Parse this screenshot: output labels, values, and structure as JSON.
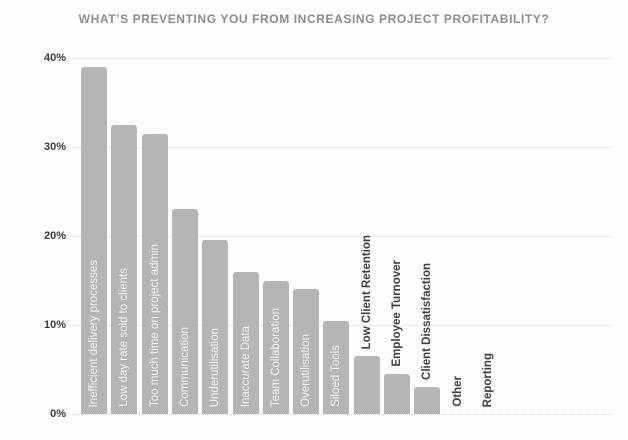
{
  "chart_data": {
    "type": "bar",
    "title": "WHAT’S PREVENTING YOU FROM INCREASING PROJECT PROFITABILITY?",
    "categories": [
      "Inefficient delivery processes",
      "Low day rate sold to clients",
      "Too much time on project admin",
      "Communication",
      "Underutilisation",
      "Inaccurate Data",
      "Team Collaboration",
      "Overutilisation",
      "Siloed Tools",
      "Low Client Retention",
      "Employee Turnover",
      "Client Dissatisfaction",
      "Other",
      "Reporting"
    ],
    "values": [
      39,
      32.5,
      31.5,
      23,
      19.5,
      16,
      15,
      14,
      10.5,
      6.5,
      4.5,
      3,
      0,
      0
    ],
    "label_placement": [
      "inside",
      "inside",
      "inside",
      "inside",
      "inside",
      "inside",
      "inside",
      "inside",
      "inside",
      "above",
      "above",
      "above",
      "above",
      "above"
    ],
    "xlabel": "",
    "ylabel": "",
    "ylim": [
      0,
      40
    ],
    "ytick_values": [
      0,
      10,
      20,
      30,
      40
    ],
    "ytick_labels": [
      "0%",
      "10%",
      "20%",
      "30%",
      "40%"
    ],
    "grid": true,
    "legend": false,
    "colors": {
      "bar": "#b5b5b5",
      "inside_label": "#f4f4f4",
      "outside_label": "#3f3f3f",
      "title": "#8c8c8c",
      "tick": "#3b3b3b",
      "gridline": "#ededed",
      "baseline": "#d6d6d6",
      "background": "#fdfdfd"
    }
  }
}
